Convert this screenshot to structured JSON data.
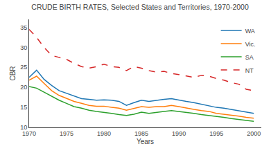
{
  "chart_data": {
    "type": "line",
    "title": "CRUDE BIRTH RATES, Selected States and Territories, 1970-2000",
    "xlabel": "Years",
    "ylabel": "CBR",
    "x": [
      1970,
      1971,
      1972,
      1973,
      1974,
      1975,
      1976,
      1977,
      1978,
      1979,
      1980,
      1981,
      1982,
      1983,
      1984,
      1985,
      1986,
      1987,
      1988,
      1989,
      1990,
      1991,
      1992,
      1993,
      1994,
      1995,
      1996,
      1997,
      1998,
      1999,
      2000
    ],
    "series": [
      {
        "name": "WA",
        "line_style": "solid",
        "values": [
          22.5,
          24.3,
          22.0,
          20.5,
          19.2,
          18.5,
          17.8,
          17.2,
          17.0,
          16.8,
          16.9,
          16.8,
          16.5,
          15.5,
          16.2,
          16.8,
          16.5,
          16.8,
          17.0,
          17.2,
          16.8,
          16.5,
          16.2,
          15.8,
          15.5,
          15.0,
          14.8,
          14.5,
          14.2,
          13.8,
          13.5
        ]
      },
      {
        "name": "Vic.",
        "line_style": "solid",
        "values": [
          21.8,
          22.8,
          21.0,
          19.2,
          18.0,
          17.2,
          16.5,
          16.0,
          15.5,
          15.3,
          15.3,
          15.0,
          14.8,
          14.3,
          14.8,
          15.2,
          15.0,
          15.2,
          15.2,
          15.5,
          15.2,
          14.8,
          14.5,
          14.2,
          14.0,
          13.5,
          13.3,
          13.0,
          12.8,
          12.5,
          12.3
        ]
      },
      {
        "name": "SA",
        "line_style": "solid",
        "values": [
          20.2,
          19.8,
          18.8,
          17.8,
          16.8,
          16.0,
          15.2,
          14.8,
          14.3,
          14.0,
          13.8,
          13.5,
          13.2,
          13.0,
          13.3,
          13.8,
          13.5,
          13.8,
          14.0,
          14.2,
          14.0,
          13.8,
          13.5,
          13.2,
          13.0,
          12.8,
          12.5,
          12.2,
          12.0,
          11.8,
          11.5
        ]
      },
      {
        "name": "NT",
        "line_style": "dashed",
        "values": [
          34.5,
          32.5,
          30.0,
          28.0,
          27.5,
          27.0,
          26.0,
          25.2,
          24.8,
          25.2,
          25.8,
          25.2,
          25.0,
          24.2,
          25.2,
          24.8,
          24.2,
          23.8,
          24.0,
          23.5,
          23.2,
          22.8,
          22.5,
          23.0,
          22.8,
          22.2,
          21.8,
          21.2,
          20.8,
          19.5,
          19.2
        ]
      }
    ],
    "xlim": [
      1970,
      2001
    ],
    "xticks": [
      1970,
      1975,
      1980,
      1985,
      1990,
      1995,
      2000
    ],
    "ylim": [
      10,
      37
    ],
    "yticks": [
      10,
      15,
      20,
      25,
      30,
      35
    ],
    "grid": false,
    "legend": "upper right"
  }
}
